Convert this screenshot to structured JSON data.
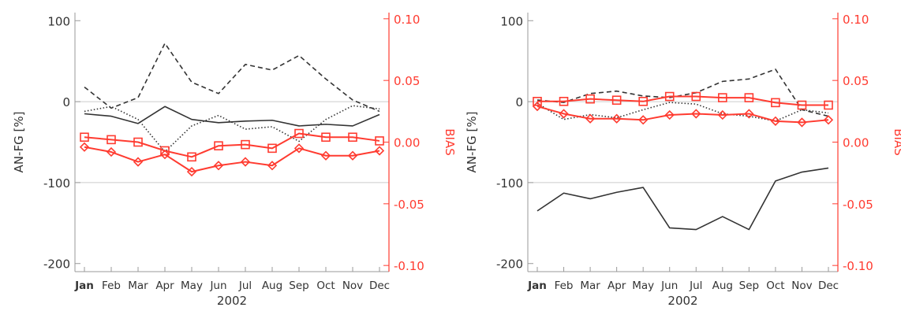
{
  "colors": {
    "black": "#333333",
    "red": "#ff3b30",
    "grid": "#cccccc",
    "axis": "#999999"
  },
  "chart_data": [
    {
      "type": "line",
      "categories": [
        "Jan",
        "Feb",
        "Mar",
        "Apr",
        "May",
        "Jun",
        "Jul",
        "Aug",
        "Sep",
        "Oct",
        "Nov",
        "Dec"
      ],
      "xlabel": "2002",
      "ylabel": "AN-FG [%]",
      "y2label": "BIAS",
      "ylim": [
        -210,
        110
      ],
      "y2lim": [
        -0.105,
        0.105
      ],
      "yticks": [
        100,
        0,
        -100,
        -200
      ],
      "y2ticks": [
        "0.10",
        "0.05",
        "0.00",
        "-0.05",
        "-0.10"
      ],
      "grid_y": [
        0,
        -100
      ],
      "series": [
        {
          "axis": "left",
          "style": "dashed",
          "color": "black",
          "values": [
            18,
            -8,
            5,
            72,
            24,
            10,
            46,
            39,
            57,
            28,
            2,
            -12
          ]
        },
        {
          "axis": "left",
          "style": "solid",
          "color": "black",
          "values": [
            -15,
            -18,
            -27,
            -6,
            -22,
            -26,
            -24,
            -23,
            -30,
            -28,
            -30,
            -16
          ]
        },
        {
          "axis": "left",
          "style": "dotted",
          "color": "black",
          "values": [
            -12,
            -6,
            -22,
            -62,
            -30,
            -17,
            -34,
            -31,
            -49,
            -22,
            -5,
            -9
          ]
        },
        {
          "axis": "right",
          "style": "solid",
          "color": "red",
          "marker": "square",
          "values": [
            0.004,
            0.002,
            0.0,
            -0.007,
            -0.012,
            -0.003,
            -0.002,
            -0.005,
            0.007,
            0.004,
            0.004,
            0.001
          ]
        },
        {
          "axis": "right",
          "style": "solid",
          "color": "red",
          "marker": "diamond",
          "values": [
            -0.004,
            -0.008,
            -0.016,
            -0.01,
            -0.024,
            -0.019,
            -0.016,
            -0.019,
            -0.005,
            -0.011,
            -0.011,
            -0.007
          ]
        }
      ]
    },
    {
      "type": "line",
      "categories": [
        "Jan",
        "Feb",
        "Mar",
        "Apr",
        "May",
        "Jun",
        "Jul",
        "Aug",
        "Sep",
        "Oct",
        "Nov",
        "Dec"
      ],
      "xlabel": "2002",
      "ylabel": "AN-FG [%]",
      "y2label": "BIAS",
      "ylim": [
        -210,
        110
      ],
      "y2lim": [
        -0.105,
        0.105
      ],
      "yticks": [
        100,
        0,
        -100,
        -200
      ],
      "y2ticks": [
        "0.10",
        "0.05",
        "0.00",
        "-0.05",
        "-0.10"
      ],
      "grid_y": [
        0,
        -100
      ],
      "series": [
        {
          "axis": "left",
          "style": "dashed",
          "color": "black",
          "values": [
            2,
            -1,
            10,
            13,
            7,
            5,
            11,
            25,
            28,
            40,
            -10,
            -18
          ]
        },
        {
          "axis": "left",
          "style": "solid",
          "color": "black",
          "values": [
            -135,
            -113,
            -120,
            -112,
            -106,
            -156,
            -158,
            -142,
            -158,
            -98,
            -87,
            -82
          ]
        },
        {
          "axis": "left",
          "style": "dotted",
          "color": "black",
          "values": [
            -2,
            -22,
            -16,
            -20,
            -10,
            -1,
            -3,
            -15,
            -18,
            -24,
            -10,
            -14
          ]
        },
        {
          "axis": "right",
          "style": "solid",
          "color": "red",
          "marker": "square",
          "values": [
            0.033,
            0.033,
            0.035,
            0.034,
            0.033,
            0.037,
            0.037,
            0.036,
            0.036,
            0.032,
            0.03,
            0.03
          ]
        },
        {
          "axis": "right",
          "style": "solid",
          "color": "red",
          "marker": "diamond",
          "values": [
            0.029,
            0.023,
            0.019,
            0.019,
            0.018,
            0.022,
            0.023,
            0.022,
            0.023,
            0.017,
            0.016,
            0.018
          ]
        }
      ]
    }
  ]
}
